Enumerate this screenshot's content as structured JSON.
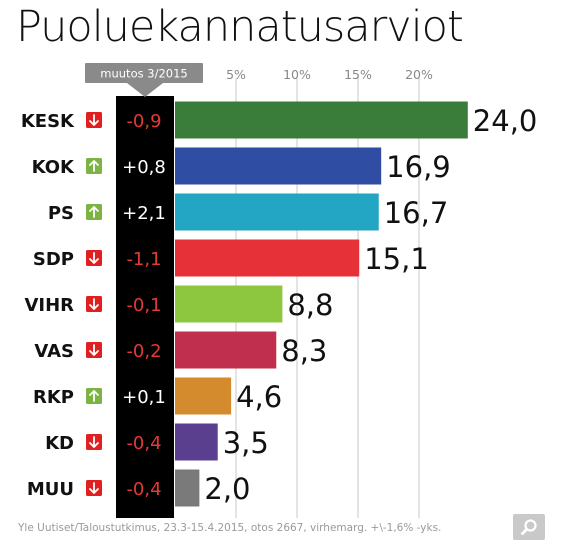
{
  "title": "Puoluekannatusarviot",
  "change_header": "muutos 3/2015",
  "footer_source": "Yle Uutiset/Taloustutkimus, 23.3-15.4.2015, otos 2667, virhemarg. +\\-1,6% -yks.",
  "search_icon": "magnifier-icon",
  "colors": {
    "change_column_bg": "#000000",
    "up_arrow_bg": "#7cb342",
    "down_arrow_bg": "#e02020",
    "positive_change_text": "#ffffff",
    "negative_change_text": "#e53935",
    "gridline": "#c8c8c8",
    "axis_tick_text": "#888888"
  },
  "chart_data": {
    "type": "bar",
    "orientation": "horizontal",
    "title": "Puoluekannatusarviot",
    "xlim": [
      0,
      24
    ],
    "ticks": [
      5,
      10,
      15,
      20
    ],
    "tick_labels": [
      "5%",
      "10%",
      "15%",
      "20%"
    ],
    "grid": true,
    "categories": [
      "KESK",
      "KOK",
      "PS",
      "SDP",
      "VIHR",
      "VAS",
      "RKP",
      "KD",
      "MUU"
    ],
    "values": [
      24.0,
      16.9,
      16.7,
      15.1,
      8.8,
      8.3,
      4.6,
      3.5,
      2.0
    ],
    "value_labels": [
      "24,0",
      "16,9",
      "16,7",
      "15,1",
      "8,8",
      "8,3",
      "4,6",
      "3,5",
      "2,0"
    ],
    "changes": [
      -0.9,
      0.8,
      2.1,
      -1.1,
      -0.1,
      -0.2,
      0.1,
      -0.4,
      -0.4
    ],
    "change_labels": [
      "-0,9",
      "+0,8",
      "+2,1",
      "-1,1",
      "-0,1",
      "-0,2",
      "+0,1",
      "-0,4",
      "-0,4"
    ],
    "trend": [
      "down",
      "up",
      "up",
      "down",
      "down",
      "down",
      "up",
      "down",
      "down"
    ],
    "bar_colors": [
      "#3a7d3a",
      "#2f4ea3",
      "#23a5c4",
      "#e53137",
      "#8dc63f",
      "#c0304e",
      "#d48b2e",
      "#5b3f8f",
      "#7a7a7a"
    ]
  }
}
